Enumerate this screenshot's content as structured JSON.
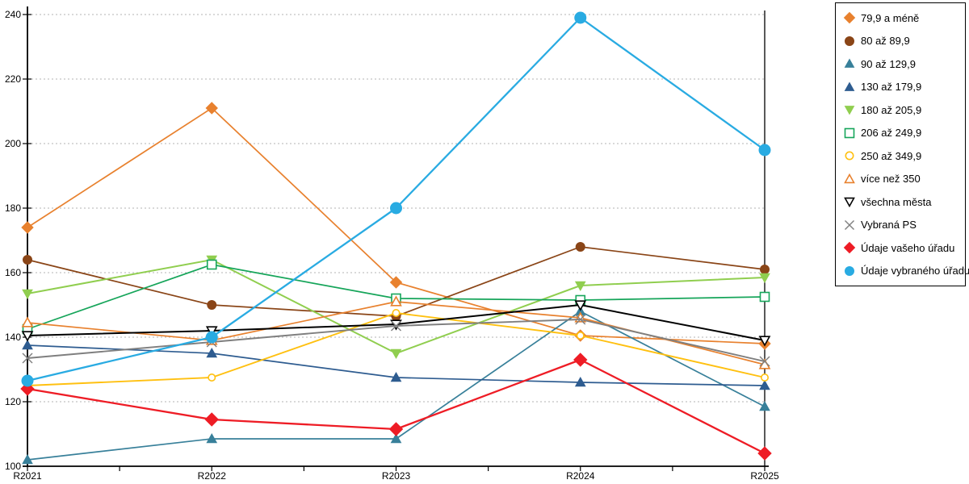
{
  "chart_data": {
    "type": "line",
    "title": "",
    "xlabel": "",
    "ylabel": "",
    "x_categories": [
      "R2021",
      "R2022",
      "R2023",
      "R2024",
      "R2025"
    ],
    "y_ticks": [
      100,
      120,
      140,
      160,
      180,
      200,
      220,
      240
    ],
    "ylim": [
      100,
      240
    ],
    "grid": "horizontal-dotted",
    "gridline_color": "#b3b3b3",
    "axis_color": "#000000",
    "legend_position": "right",
    "series": [
      {
        "name": "79,9 a méně",
        "color": "#e8812e",
        "marker": "diamond",
        "filled": true,
        "lw": 1.7,
        "msize": 6,
        "values": [
          174,
          211,
          157,
          140.5,
          138
        ]
      },
      {
        "name": "80 až 89,9",
        "color": "#8a4517",
        "marker": "circle",
        "filled": true,
        "lw": 1.7,
        "msize": 5.5,
        "values": [
          164,
          150,
          146.5,
          168,
          161
        ]
      },
      {
        "name": "90 až 129,9",
        "color": "#38809a",
        "marker": "triangle-up",
        "filled": true,
        "lw": 1.7,
        "msize": 6,
        "values": [
          102,
          108.5,
          108.5,
          148,
          118.5
        ]
      },
      {
        "name": "130 až 179,9",
        "color": "#2e5c90",
        "marker": "triangle-up",
        "filled": true,
        "lw": 1.7,
        "msize": 6,
        "values": [
          137.5,
          135,
          127.5,
          126,
          125
        ]
      },
      {
        "name": "180 až 205,9",
        "color": "#90ce4f",
        "marker": "triangle-down",
        "filled": true,
        "lw": 2.0,
        "msize": 6,
        "values": [
          153.5,
          164,
          135,
          156,
          158.5
        ]
      },
      {
        "name": "206 až 249,9",
        "color": "#16a55a",
        "marker": "square",
        "filled": false,
        "lw": 1.7,
        "msize": 5.5,
        "values": [
          142.5,
          162.5,
          152,
          151.5,
          152.5
        ]
      },
      {
        "name": "250 až 349,9",
        "color": "#ffc010",
        "marker": "circle",
        "filled": false,
        "lw": 1.9,
        "msize": 5,
        "values": [
          125,
          127.5,
          147.5,
          140.5,
          127.5
        ]
      },
      {
        "name": "více než 350",
        "color": "#e8812e",
        "marker": "triangle-up",
        "filled": false,
        "lw": 1.7,
        "msize": 6,
        "values": [
          144.5,
          139,
          151,
          146,
          131.5
        ]
      },
      {
        "name": "všechna města",
        "color": "#000000",
        "marker": "triangle-down",
        "filled": false,
        "lw": 2.0,
        "msize": 6,
        "values": [
          140.5,
          142,
          144,
          150,
          139
        ]
      },
      {
        "name": "Vybraná PS",
        "color": "#7f7f7f",
        "marker": "x",
        "filled": false,
        "lw": 1.9,
        "msize": 6,
        "values": [
          133.5,
          138.5,
          143.5,
          145.5,
          132.5
        ]
      },
      {
        "name": "Údaje vašeho úřadu",
        "color": "#ee1c25",
        "marker": "diamond",
        "filled": true,
        "lw": 2.3,
        "msize": 7,
        "values": [
          124,
          114.5,
          111.5,
          133,
          104
        ]
      },
      {
        "name": "Údaje vybraného úřadu",
        "color": "#29abe2",
        "marker": "circle",
        "filled": true,
        "lw": 2.3,
        "msize": 7,
        "values": [
          126.5,
          140,
          180,
          239,
          198
        ]
      }
    ]
  }
}
